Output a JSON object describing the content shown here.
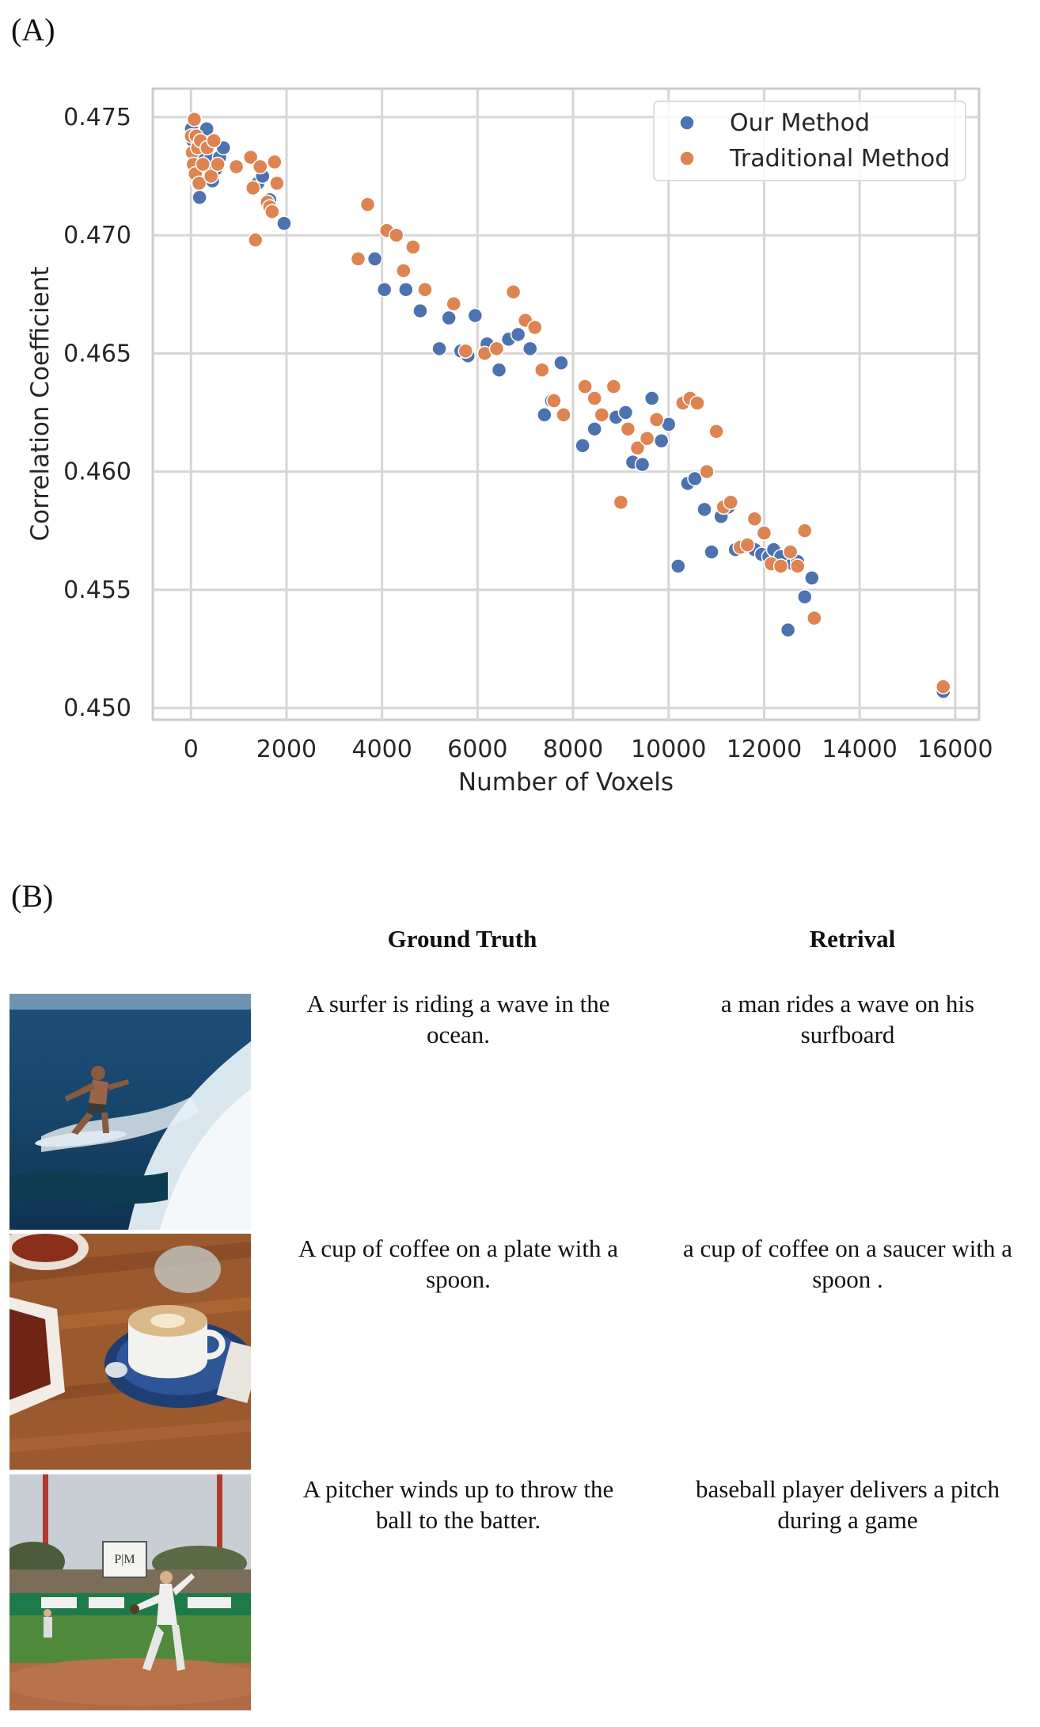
{
  "panel_a_label": "(A)",
  "panel_b_label": "(B)",
  "chart_data": {
    "type": "scatter",
    "title": "",
    "xlabel": "Number of Voxels",
    "ylabel": "Correlation Coefficient",
    "xlim": [
      -800,
      16500
    ],
    "ylim": [
      0.4495,
      0.4762
    ],
    "xticks": [
      0,
      2000,
      4000,
      6000,
      8000,
      10000,
      12000,
      14000,
      16000
    ],
    "yticks": [
      0.45,
      0.455,
      0.46,
      0.465,
      0.47,
      0.475
    ],
    "ytick_labels": [
      "0.450",
      "0.455",
      "0.460",
      "0.465",
      "0.470",
      "0.475"
    ],
    "grid": true,
    "legend_position": "top-right",
    "series": [
      {
        "name": "Our Method",
        "color": "#4c72b0",
        "points": [
          [
            10,
            0.4745
          ],
          [
            40,
            0.474
          ],
          [
            60,
            0.4735
          ],
          [
            90,
            0.473
          ],
          [
            120,
            0.4727
          ],
          [
            150,
            0.4722
          ],
          [
            180,
            0.4716
          ],
          [
            220,
            0.4733
          ],
          [
            260,
            0.4738
          ],
          [
            330,
            0.4745
          ],
          [
            400,
            0.4732
          ],
          [
            450,
            0.4723
          ],
          [
            520,
            0.4728
          ],
          [
            600,
            0.4733
          ],
          [
            680,
            0.4737
          ],
          [
            1400,
            0.4722
          ],
          [
            1500,
            0.4725
          ],
          [
            1650,
            0.4715
          ],
          [
            1950,
            0.4705
          ],
          [
            3850,
            0.469
          ],
          [
            4050,
            0.4677
          ],
          [
            4500,
            0.4677
          ],
          [
            4800,
            0.4668
          ],
          [
            5200,
            0.4652
          ],
          [
            5400,
            0.4665
          ],
          [
            5650,
            0.4651
          ],
          [
            5800,
            0.4649
          ],
          [
            5950,
            0.4666
          ],
          [
            6200,
            0.4654
          ],
          [
            6450,
            0.4643
          ],
          [
            6650,
            0.4656
          ],
          [
            6850,
            0.4658
          ],
          [
            7100,
            0.4652
          ],
          [
            7400,
            0.4624
          ],
          [
            7550,
            0.463
          ],
          [
            7750,
            0.4646
          ],
          [
            8200,
            0.4611
          ],
          [
            8450,
            0.4618
          ],
          [
            8900,
            0.4623
          ],
          [
            9100,
            0.4625
          ],
          [
            9250,
            0.4604
          ],
          [
            9450,
            0.4603
          ],
          [
            9650,
            0.4631
          ],
          [
            9850,
            0.4613
          ],
          [
            10000,
            0.462
          ],
          [
            10200,
            0.456
          ],
          [
            10400,
            0.4595
          ],
          [
            10550,
            0.4597
          ],
          [
            10750,
            0.4584
          ],
          [
            10900,
            0.4566
          ],
          [
            11100,
            0.4581
          ],
          [
            11250,
            0.4585
          ],
          [
            11400,
            0.4567
          ],
          [
            11550,
            0.4568
          ],
          [
            11800,
            0.4567
          ],
          [
            11950,
            0.4565
          ],
          [
            12100,
            0.4564
          ],
          [
            12200,
            0.4567
          ],
          [
            12350,
            0.4564
          ],
          [
            12500,
            0.4533
          ],
          [
            12600,
            0.4561
          ],
          [
            12700,
            0.4562
          ],
          [
            12850,
            0.4547
          ],
          [
            13000,
            0.4555
          ],
          [
            15750,
            0.4507
          ]
        ]
      },
      {
        "name": "Traditional Method",
        "color": "#dd8452",
        "points": [
          [
            10,
            0.4742
          ],
          [
            30,
            0.4735
          ],
          [
            50,
            0.473
          ],
          [
            70,
            0.4749
          ],
          [
            90,
            0.4726
          ],
          [
            110,
            0.4742
          ],
          [
            140,
            0.4737
          ],
          [
            170,
            0.4722
          ],
          [
            200,
            0.474
          ],
          [
            250,
            0.473
          ],
          [
            340,
            0.4737
          ],
          [
            420,
            0.4725
          ],
          [
            480,
            0.474
          ],
          [
            560,
            0.473
          ],
          [
            950,
            0.4729
          ],
          [
            1250,
            0.4733
          ],
          [
            1300,
            0.472
          ],
          [
            1350,
            0.4698
          ],
          [
            1450,
            0.4729
          ],
          [
            1600,
            0.4714
          ],
          [
            1650,
            0.4712
          ],
          [
            1700,
            0.471
          ],
          [
            1750,
            0.4731
          ],
          [
            1800,
            0.4722
          ],
          [
            3500,
            0.469
          ],
          [
            3700,
            0.4713
          ],
          [
            4100,
            0.4702
          ],
          [
            4300,
            0.47
          ],
          [
            4450,
            0.4685
          ],
          [
            4650,
            0.4695
          ],
          [
            4900,
            0.4677
          ],
          [
            5500,
            0.4671
          ],
          [
            5750,
            0.4651
          ],
          [
            6150,
            0.465
          ],
          [
            6400,
            0.4652
          ],
          [
            6750,
            0.4676
          ],
          [
            7000,
            0.4664
          ],
          [
            7200,
            0.4661
          ],
          [
            7350,
            0.4643
          ],
          [
            7600,
            0.463
          ],
          [
            7800,
            0.4624
          ],
          [
            8250,
            0.4636
          ],
          [
            8450,
            0.4631
          ],
          [
            8600,
            0.4624
          ],
          [
            8850,
            0.4636
          ],
          [
            9000,
            0.4587
          ],
          [
            9150,
            0.4618
          ],
          [
            9350,
            0.461
          ],
          [
            9550,
            0.4614
          ],
          [
            9750,
            0.4622
          ],
          [
            10300,
            0.4629
          ],
          [
            10450,
            0.4631
          ],
          [
            10600,
            0.4629
          ],
          [
            10800,
            0.46
          ],
          [
            11000,
            0.4617
          ],
          [
            11150,
            0.4585
          ],
          [
            11300,
            0.4587
          ],
          [
            11500,
            0.4568
          ],
          [
            11650,
            0.4569
          ],
          [
            11800,
            0.458
          ],
          [
            12000,
            0.4574
          ],
          [
            12150,
            0.4561
          ],
          [
            12350,
            0.456
          ],
          [
            12550,
            0.4566
          ],
          [
            12700,
            0.456
          ],
          [
            12850,
            0.4575
          ],
          [
            13050,
            0.4538
          ],
          [
            15750,
            0.4509
          ]
        ]
      }
    ]
  },
  "panel_b": {
    "headers": {
      "ground_truth": "Ground Truth",
      "retrieval": "Retrival"
    },
    "rows": [
      {
        "image": "surfer",
        "gt_lines": [
          "A surfer is riding a wave in the",
          "ocean."
        ],
        "ret_lines": [
          "a man rides a wave on his",
          "surfboard"
        ]
      },
      {
        "image": "coffee",
        "gt_lines": [
          "A cup of coffee on a plate with a",
          "spoon."
        ],
        "ret_lines": [
          "a cup of coffee on a saucer with a",
          "spoon ."
        ]
      },
      {
        "image": "baseball",
        "gt_lines": [
          "A pitcher winds up to throw the",
          "ball to the batter."
        ],
        "ret_lines": [
          "baseball player delivers a pitch",
          "during a game"
        ]
      }
    ],
    "scoreboard_text": "P|M"
  }
}
